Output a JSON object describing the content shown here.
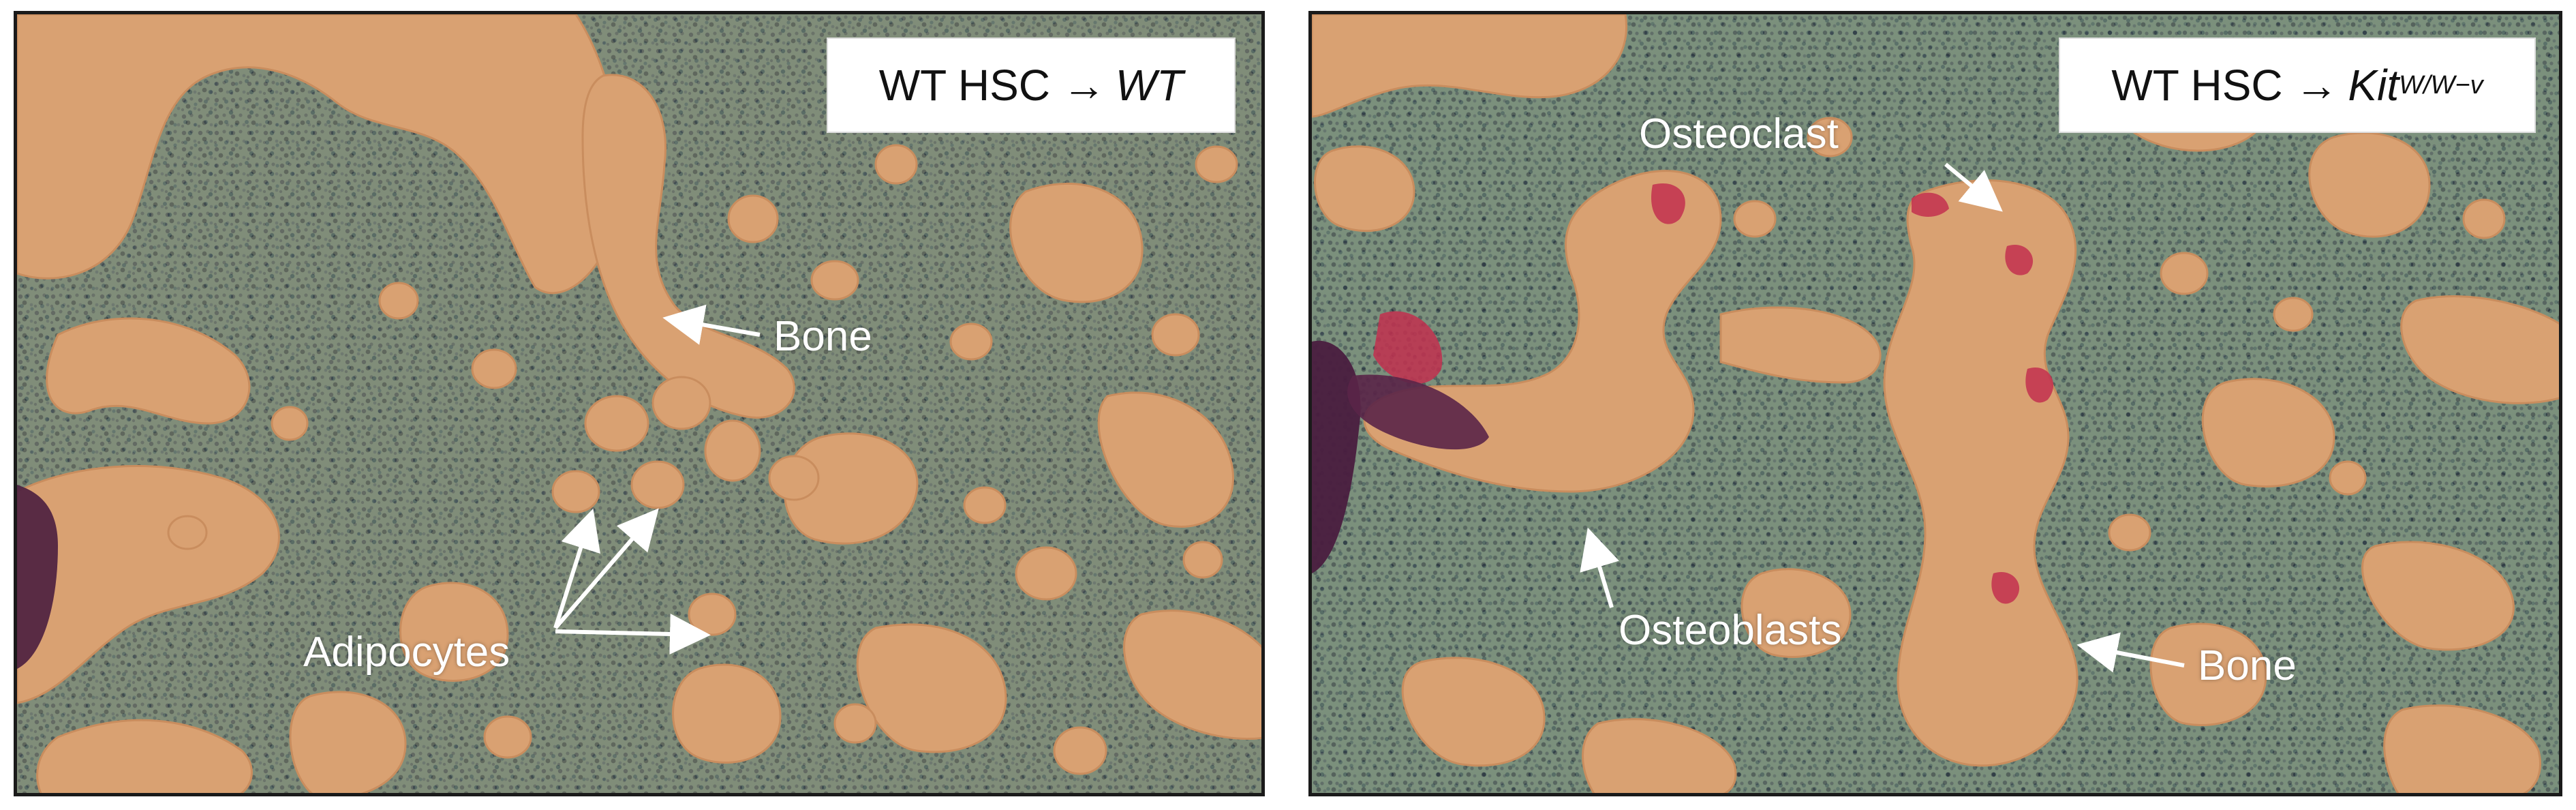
{
  "figure": {
    "panels": [
      {
        "id": "left",
        "condition_prefix": "WT HSC →",
        "condition_recipient": "WT",
        "annotations": {
          "bone": "Bone",
          "adipocytes": "Adipocytes"
        }
      },
      {
        "id": "right",
        "condition_prefix": "WT HSC →",
        "condition_recipient": "Kit",
        "condition_superscript": "W/W−v",
        "annotations": {
          "osteoclast": "Osteoclast",
          "osteoblasts": "Osteoblasts",
          "bone": "Bone"
        }
      }
    ],
    "colors": {
      "bone_matrix": "#d9a172",
      "marrow_tissue": "#6f8a73",
      "osteoclast_stain": "#c2304f",
      "dark_purple": "#4a1e3f",
      "annotation_text": "#ffffff"
    }
  }
}
